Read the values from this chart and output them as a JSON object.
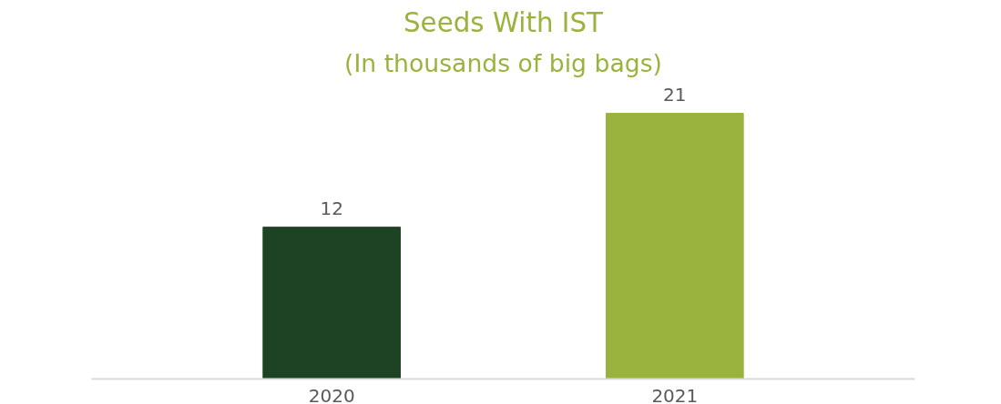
{
  "chart_data": {
    "type": "bar",
    "title": "Seeds With IST",
    "subtitle": "(In thousands of big bags)",
    "categories": [
      "2020",
      "2021"
    ],
    "values": [
      12,
      21
    ],
    "colors": [
      "#1e4324",
      "#9ab33e"
    ],
    "data_labels": true,
    "grid": false
  }
}
